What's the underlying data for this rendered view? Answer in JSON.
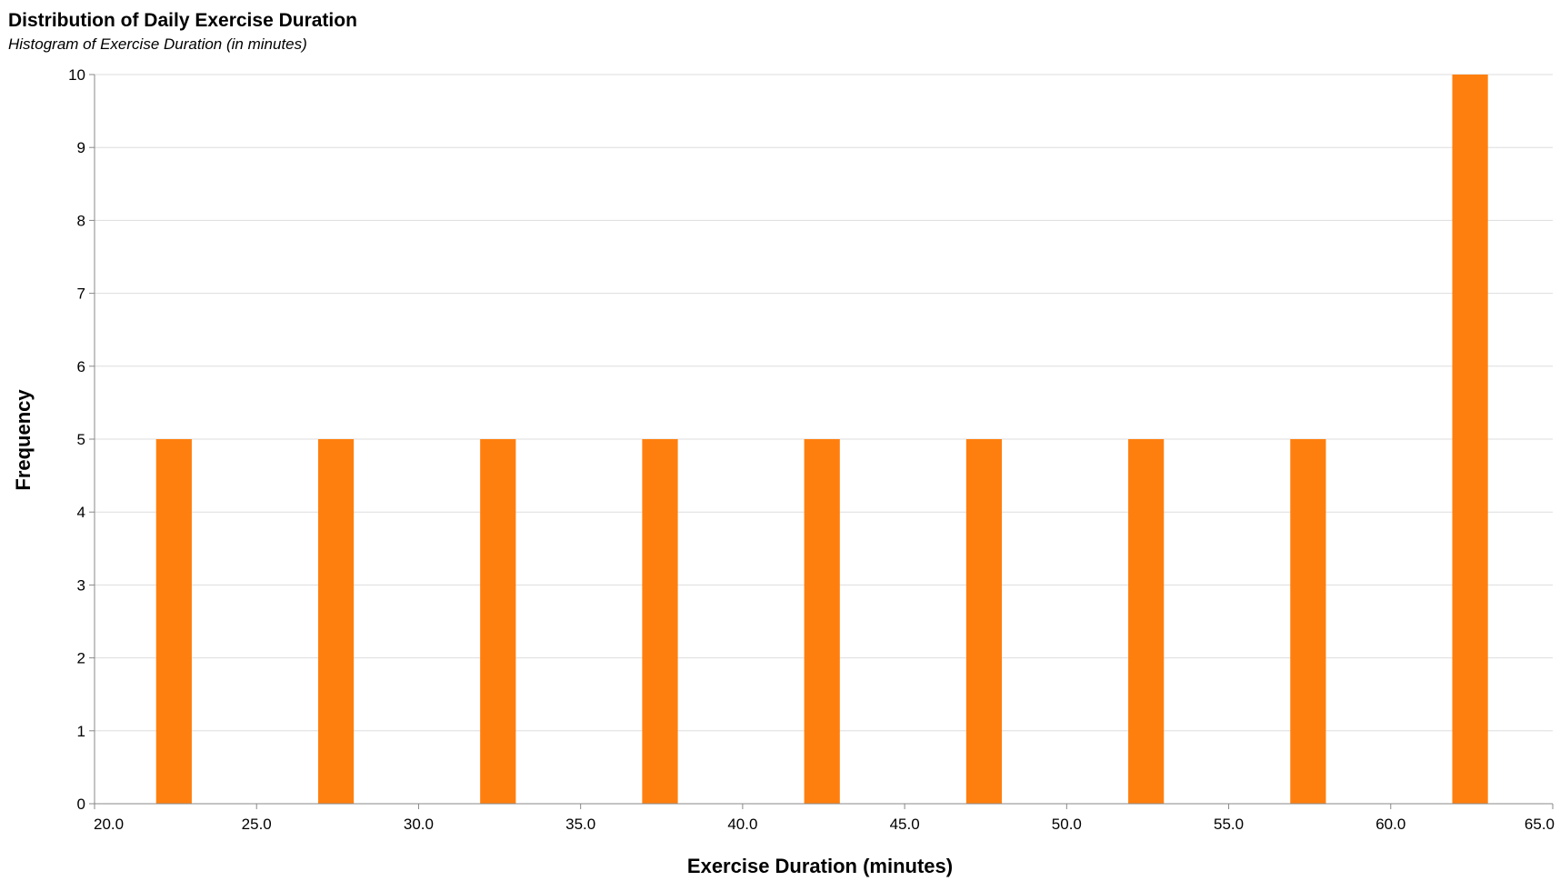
{
  "chart_data": {
    "type": "bar",
    "title": "Distribution of Daily Exercise Duration",
    "subtitle": "Histogram of Exercise Duration (in minutes)",
    "xlabel": "Exercise Duration (minutes)",
    "ylabel": "Frequency",
    "xlim": [
      20,
      65
    ],
    "ylim": [
      0,
      10
    ],
    "x_ticks": [
      "20.0",
      "25.0",
      "30.0",
      "35.0",
      "40.0",
      "45.0",
      "50.0",
      "55.0",
      "60.0",
      "65.0"
    ],
    "y_ticks": [
      "0",
      "1",
      "2",
      "3",
      "4",
      "5",
      "6",
      "7",
      "8",
      "9",
      "10"
    ],
    "bins": [
      {
        "x0": 21.9,
        "x1": 23.0,
        "value": 5
      },
      {
        "x0": 26.9,
        "x1": 28.0,
        "value": 5
      },
      {
        "x0": 31.9,
        "x1": 33.0,
        "value": 5
      },
      {
        "x0": 36.9,
        "x1": 38.0,
        "value": 5
      },
      {
        "x0": 41.9,
        "x1": 43.0,
        "value": 5
      },
      {
        "x0": 46.9,
        "x1": 48.0,
        "value": 5
      },
      {
        "x0": 51.9,
        "x1": 53.0,
        "value": 5
      },
      {
        "x0": 56.9,
        "x1": 58.0,
        "value": 5
      },
      {
        "x0": 61.9,
        "x1": 63.0,
        "value": 10
      }
    ],
    "bar_color": "#ff7f0e",
    "grid": true
  }
}
